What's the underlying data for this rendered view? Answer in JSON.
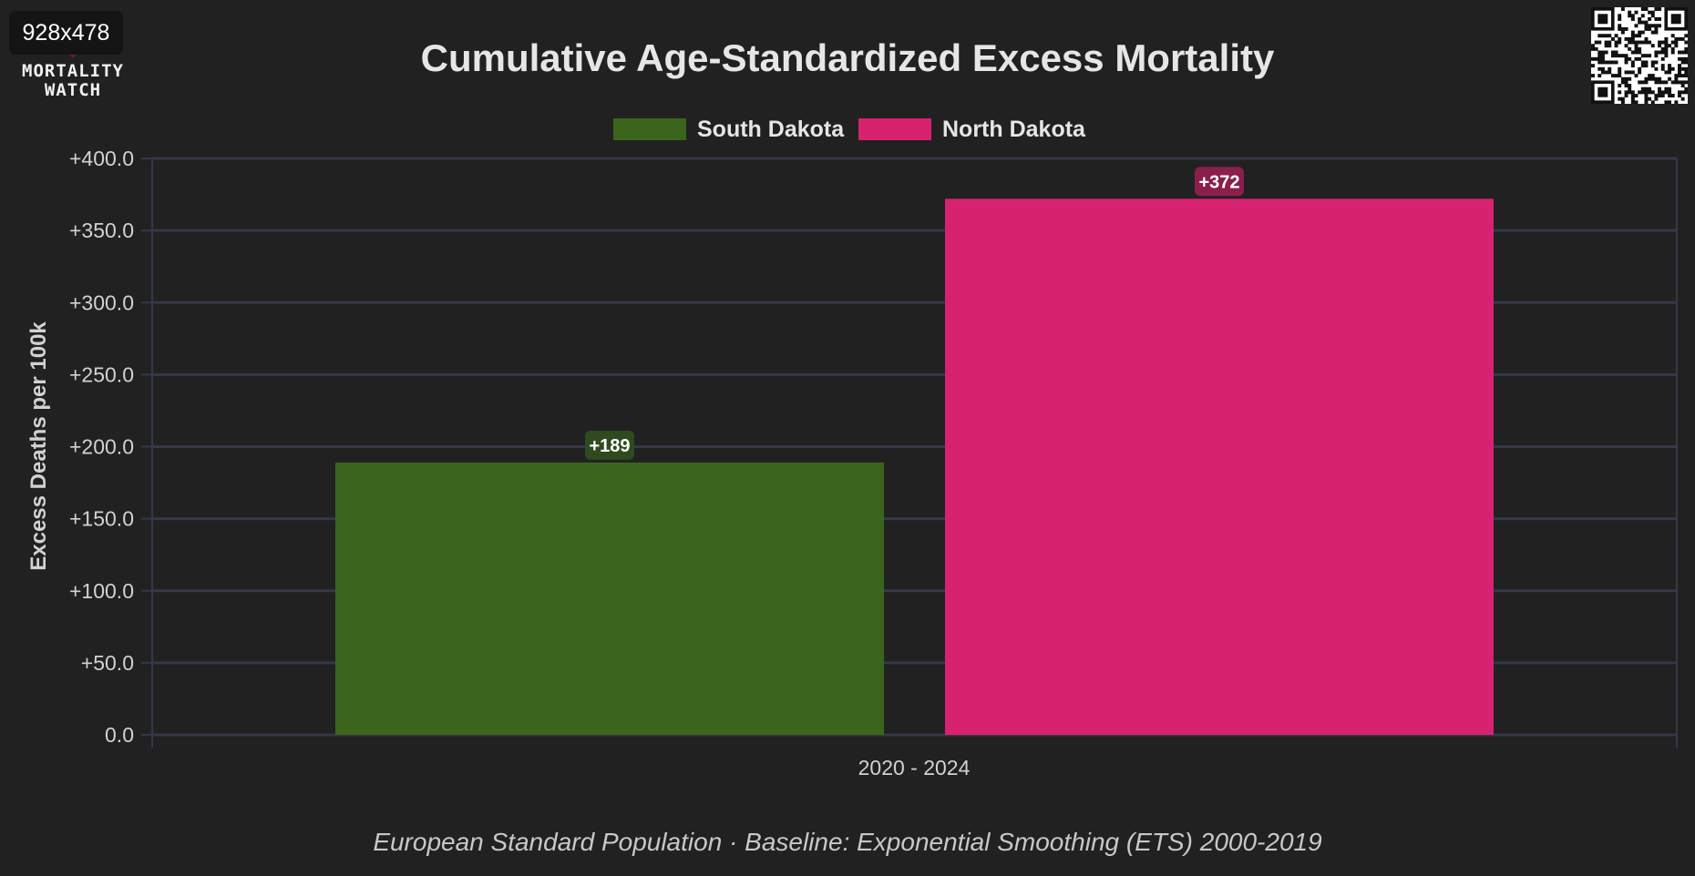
{
  "badge": {
    "size_text": "928x478"
  },
  "logo": {
    "line1": "MORTALITY",
    "line2": "WATCH",
    "icon": "heart-logo-icon"
  },
  "qr_code": {
    "icon": "qr-code-icon"
  },
  "colors": {
    "background": "#212121",
    "grid": "#343848",
    "south_dakota": "#3b651d",
    "north_dakota": "#d72270",
    "south_dakota_label_bg": "#2f4a1e",
    "north_dakota_label_bg": "#8a1f4c"
  },
  "chart_data": {
    "type": "bar",
    "title": "Cumulative Age-Standardized Excess Mortality",
    "categories": [
      "2020 - 2024"
    ],
    "series": [
      {
        "name": "South Dakota",
        "values": [
          189
        ],
        "data_labels": [
          "+189"
        ],
        "color": "#3b651d"
      },
      {
        "name": "North Dakota",
        "values": [
          372
        ],
        "data_labels": [
          "+372"
        ],
        "color": "#d72270"
      }
    ],
    "xlabel": "",
    "ylabel": "Excess Deaths per 100k",
    "ylim": [
      0,
      400
    ],
    "yticks": [
      0,
      50,
      100,
      150,
      200,
      250,
      300,
      350,
      400
    ],
    "ytick_labels": [
      "0.0",
      "+50.0",
      "+100.0",
      "+150.0",
      "+200.0",
      "+250.0",
      "+300.0",
      "+350.0",
      "+400.0"
    ],
    "grid": true,
    "legend_position": "top-center",
    "footer": "European Standard Population · Baseline: Exponential Smoothing (ETS) 2000-2019"
  }
}
